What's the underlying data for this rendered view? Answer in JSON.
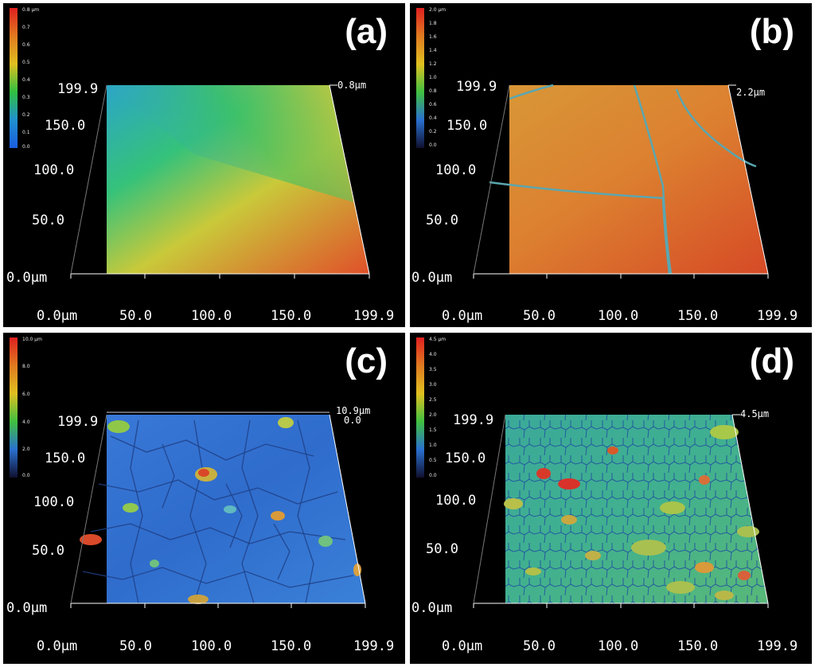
{
  "panels": [
    {
      "id": "a",
      "label": "(a)",
      "colorbar_ticks": [
        "0.8 µm",
        "0.7",
        "0.6",
        "0.5",
        "0.4",
        "0.3",
        "0.2",
        "0.1",
        "0.0"
      ],
      "zmax": "0.8µm",
      "zextra": "",
      "y_ticks": [
        "199.9",
        "150.0",
        "100.0",
        "50.0",
        "0.0µm"
      ],
      "x_ticks": [
        "0.0µm",
        "50.0",
        "100.0",
        "150.0",
        "199.9"
      ],
      "colors": {
        "c1": "#2a9fd8",
        "c2": "#35c27a",
        "c3": "#c9c93a",
        "c4": "#e0702a"
      }
    },
    {
      "id": "b",
      "label": "(b)",
      "colorbar_ticks": [
        "2.0 µm",
        "1.8",
        "1.6",
        "1.4",
        "1.2",
        "1.0",
        "0.8",
        "0.6",
        "0.4",
        "0.2",
        "0.0"
      ],
      "zmax": "2.2µm",
      "zextra": "",
      "y_ticks": [
        "199.9",
        "150.0",
        "100.0",
        "50.0",
        "0.0µm"
      ],
      "x_ticks": [
        "0.0µm",
        "50.0",
        "100.0",
        "150.0",
        "199.9"
      ],
      "colors": {
        "c1": "#d88a32",
        "c2": "#dd7d30",
        "c3": "#d97830",
        "c4": "#d8552a"
      }
    },
    {
      "id": "c",
      "label": "(c)",
      "colorbar_ticks": [
        "10.0 µm",
        "8.0",
        "6.0",
        "4.0",
        "2.0",
        "0.0"
      ],
      "zmax": "10.9µm",
      "zextra": "0.0",
      "y_ticks": [
        "199.9",
        "150.0",
        "100.0",
        "50.0",
        "0.0µm"
      ],
      "x_ticks": [
        "0.0µm",
        "50.0",
        "100.0",
        "150.0",
        "199.9"
      ],
      "colors": {
        "c1": "#2f6fd0",
        "c2": "#3477d6",
        "c3": "#2d6bc8",
        "c4": "#3a7fd8"
      }
    },
    {
      "id": "d",
      "label": "(d)",
      "colorbar_ticks": [
        "4.5 µm",
        "4.0",
        "3.5",
        "3.0",
        "2.5",
        "2.0",
        "1.5",
        "1.0",
        "0.5",
        "0.0"
      ],
      "zmax": "4.5µm",
      "zextra": "",
      "y_ticks": [
        "199.9",
        "150.0",
        "100.0",
        "50.0",
        "0.0µm"
      ],
      "x_ticks": [
        "0.0µm",
        "50.0",
        "100.0",
        "150.0",
        "199.9"
      ],
      "colors": {
        "c1": "#3aa89a",
        "c2": "#4fb880",
        "c3": "#2f9aa8",
        "c4": "#7ec060"
      }
    }
  ]
}
